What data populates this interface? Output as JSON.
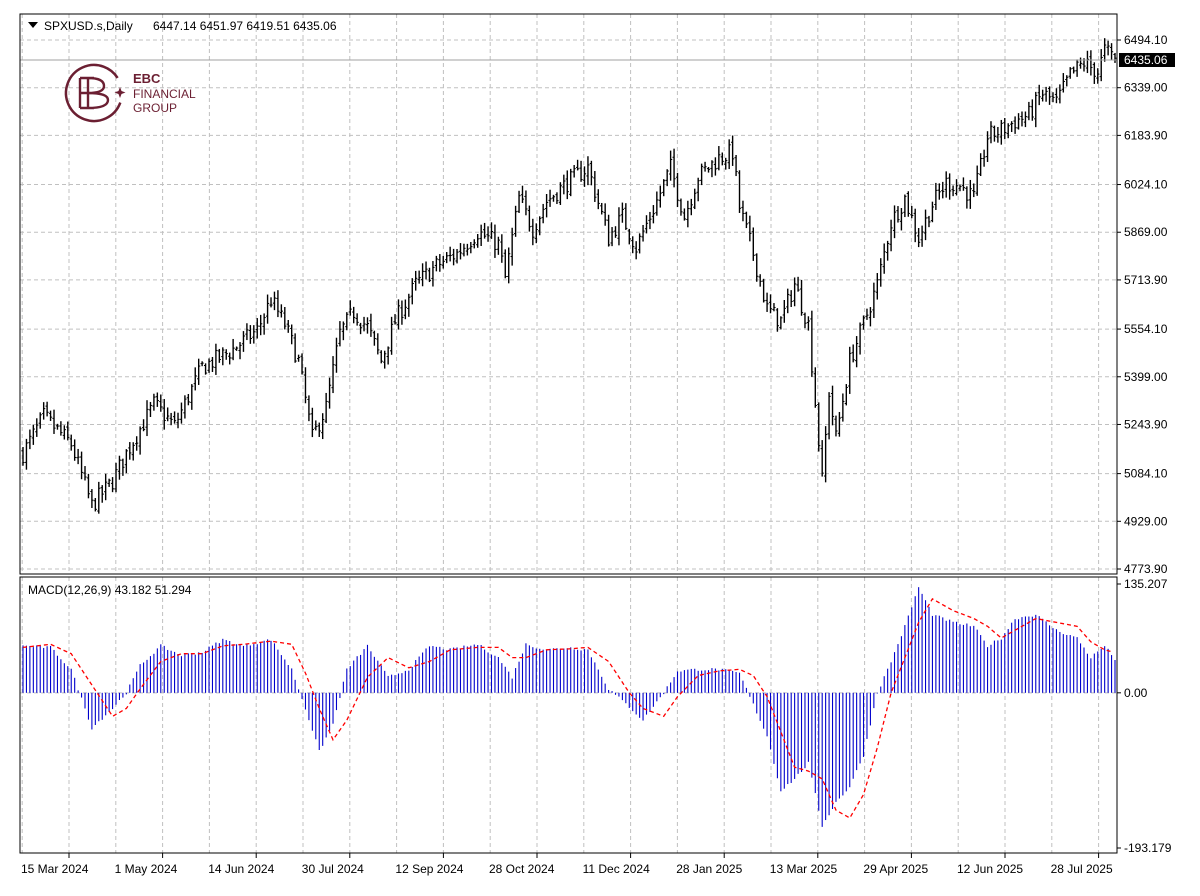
{
  "header": {
    "symbol": "SPXUSD.s,Daily",
    "ohlc": "6447.14 6451.97 6419.51 6435.06"
  },
  "logo": {
    "line1": "EBC",
    "line2": "FINANCIAL",
    "line3": "GROUP"
  },
  "price_axis": {
    "labels": [
      "6494.10",
      "6339.00",
      "6183.90",
      "6024.10",
      "5869.00",
      "5713.90",
      "5554.10",
      "5399.00",
      "5243.90",
      "5084.10",
      "4929.00",
      "4773.90"
    ],
    "current": "6435.06"
  },
  "macd": {
    "label": "MACD(12,26,9) 43.182 51.294",
    "axis_labels": [
      "135.207",
      "0.00",
      "-193.179"
    ]
  },
  "time_axis": {
    "labels": [
      "15 Mar 2024",
      "1 May 2024",
      "14 Jun 2024",
      "30 Jul 2024",
      "12 Sep 2024",
      "28 Oct 2024",
      "11 Dec 2024",
      "28 Jan 2025",
      "13 Mar 2025",
      "29 Apr 2025",
      "12 Jun 2025",
      "28 Jul 2025"
    ]
  },
  "colors": {
    "bars": "#000000",
    "grid": "#c0c0c0",
    "histogram": "#0000cc",
    "signal": "#ff0000",
    "current_price_bg": "#000000"
  },
  "chart_data": [
    {
      "type": "ohlc",
      "title": "SPXUSD.s,Daily",
      "last_bar": {
        "open": 6447.14,
        "high": 6451.97,
        "low": 6419.51,
        "close": 6435.06
      },
      "ylim": [
        4773.9,
        6494.1
      ],
      "x": [
        "15 Mar 2024",
        "1 May 2024",
        "14 Jun 2024",
        "30 Jul 2024",
        "12 Sep 2024",
        "28 Oct 2024",
        "11 Dec 2024",
        "28 Jan 2025",
        "13 Mar 2025",
        "29 Apr 2025",
        "12 Jun 2025",
        "28 Jul 2025"
      ],
      "close_trend": [
        [
          0,
          5150
        ],
        [
          6,
          5270
        ],
        [
          14,
          5180
        ],
        [
          20,
          4980
        ],
        [
          26,
          5060
        ],
        [
          30,
          5150
        ],
        [
          38,
          5310
        ],
        [
          44,
          5240
        ],
        [
          52,
          5430
        ],
        [
          60,
          5480
        ],
        [
          68,
          5550
        ],
        [
          72,
          5650
        ],
        [
          76,
          5570
        ],
        [
          80,
          5450
        ],
        [
          84,
          5200
        ],
        [
          88,
          5300
        ],
        [
          92,
          5540
        ],
        [
          96,
          5610
        ],
        [
          100,
          5560
        ],
        [
          104,
          5450
        ],
        [
          108,
          5580
        ],
        [
          114,
          5700
        ],
        [
          120,
          5760
        ],
        [
          126,
          5800
        ],
        [
          132,
          5870
        ],
        [
          138,
          5830
        ],
        [
          140,
          5720
        ],
        [
          144,
          5980
        ],
        [
          148,
          5880
        ],
        [
          152,
          5970
        ],
        [
          158,
          6030
        ],
        [
          164,
          6080
        ],
        [
          170,
          5850
        ],
        [
          174,
          5920
        ],
        [
          178,
          5820
        ],
        [
          184,
          5970
        ],
        [
          188,
          6080
        ],
        [
          192,
          5920
        ],
        [
          196,
          6050
        ],
        [
          202,
          6110
        ],
        [
          206,
          6130
        ],
        [
          208,
          5950
        ],
        [
          212,
          5800
        ],
        [
          216,
          5620
        ],
        [
          220,
          5580
        ],
        [
          224,
          5700
        ],
        [
          228,
          5570
        ],
        [
          232,
          5060
        ],
        [
          234,
          5350
        ],
        [
          236,
          5200
        ],
        [
          240,
          5450
        ],
        [
          244,
          5570
        ],
        [
          248,
          5700
        ],
        [
          252,
          5900
        ],
        [
          256,
          5980
        ],
        [
          260,
          5850
        ],
        [
          264,
          5960
        ],
        [
          268,
          6030
        ],
        [
          272,
          6020
        ],
        [
          276,
          5980
        ],
        [
          280,
          6180
        ],
        [
          284,
          6200
        ],
        [
          288,
          6230
        ],
        [
          292,
          6250
        ],
        [
          296,
          6320
        ],
        [
          300,
          6290
        ],
        [
          304,
          6380
        ],
        [
          308,
          6420
        ],
        [
          312,
          6390
        ],
        [
          314,
          6460
        ],
        [
          317,
          6435.06
        ]
      ]
    },
    {
      "type": "bar",
      "title": "MACD(12,26,9)",
      "macd_value": 43.182,
      "signal_value": 51.294,
      "ylim": [
        -193.179,
        135.207
      ],
      "series": [
        {
          "values": [
            [
              0,
              60
            ],
            [
              8,
              58
            ],
            [
              14,
              30
            ],
            [
              20,
              -45
            ],
            [
              26,
              -20
            ],
            [
              30,
              0
            ],
            [
              34,
              35
            ],
            [
              40,
              60
            ],
            [
              46,
              48
            ],
            [
              52,
              52
            ],
            [
              58,
              68
            ],
            [
              64,
              60
            ],
            [
              72,
              68
            ],
            [
              78,
              30
            ],
            [
              82,
              -20
            ],
            [
              86,
              -75
            ],
            [
              90,
              -40
            ],
            [
              94,
              30
            ],
            [
              100,
              60
            ],
            [
              106,
              20
            ],
            [
              112,
              30
            ],
            [
              118,
              60
            ],
            [
              124,
              55
            ],
            [
              132,
              62
            ],
            [
              138,
              45
            ],
            [
              142,
              20
            ],
            [
              146,
              62
            ],
            [
              152,
              55
            ],
            [
              158,
              58
            ],
            [
              164,
              55
            ],
            [
              170,
              5
            ],
            [
              176,
              -18
            ],
            [
              180,
              -35
            ],
            [
              186,
              0
            ],
            [
              190,
              28
            ],
            [
              196,
              30
            ],
            [
              202,
              30
            ],
            [
              208,
              25
            ],
            [
              212,
              -15
            ],
            [
              216,
              -55
            ],
            [
              220,
              -125
            ],
            [
              224,
              -110
            ],
            [
              228,
              -90
            ],
            [
              232,
              -170
            ],
            [
              236,
              -140
            ],
            [
              240,
              -120
            ],
            [
              244,
              -80
            ],
            [
              248,
              0
            ],
            [
              252,
              40
            ],
            [
              256,
              85
            ],
            [
              260,
              135
            ],
            [
              264,
              100
            ],
            [
              270,
              90
            ],
            [
              276,
              85
            ],
            [
              280,
              60
            ],
            [
              284,
              70
            ],
            [
              288,
              95
            ],
            [
              294,
              100
            ],
            [
              300,
              80
            ],
            [
              306,
              70
            ],
            [
              310,
              45
            ],
            [
              314,
              60
            ],
            [
              317,
              43.182
            ]
          ]
        },
        {
          "values": [
            [
              0,
              58
            ],
            [
              8,
              62
            ],
            [
              14,
              50
            ],
            [
              20,
              10
            ],
            [
              26,
              -30
            ],
            [
              30,
              -20
            ],
            [
              34,
              5
            ],
            [
              40,
              40
            ],
            [
              46,
              50
            ],
            [
              52,
              50
            ],
            [
              58,
              60
            ],
            [
              64,
              62
            ],
            [
              72,
              66
            ],
            [
              78,
              62
            ],
            [
              82,
              25
            ],
            [
              86,
              -20
            ],
            [
              90,
              -60
            ],
            [
              94,
              -35
            ],
            [
              100,
              20
            ],
            [
              106,
              45
            ],
            [
              112,
              32
            ],
            [
              118,
              40
            ],
            [
              124,
              55
            ],
            [
              132,
              58
            ],
            [
              138,
              58
            ],
            [
              142,
              45
            ],
            [
              146,
              45
            ],
            [
              152,
              55
            ],
            [
              158,
              56
            ],
            [
              164,
              58
            ],
            [
              170,
              40
            ],
            [
              176,
              0
            ],
            [
              180,
              -20
            ],
            [
              186,
              -30
            ],
            [
              190,
              -5
            ],
            [
              196,
              22
            ],
            [
              202,
              28
            ],
            [
              208,
              30
            ],
            [
              212,
              22
            ],
            [
              216,
              -5
            ],
            [
              220,
              -50
            ],
            [
              224,
              -95
            ],
            [
              228,
              -100
            ],
            [
              232,
              -110
            ],
            [
              236,
              -150
            ],
            [
              240,
              -160
            ],
            [
              244,
              -130
            ],
            [
              248,
              -70
            ],
            [
              252,
              0
            ],
            [
              256,
              45
            ],
            [
              260,
              90
            ],
            [
              264,
              120
            ],
            [
              270,
              105
            ],
            [
              276,
              95
            ],
            [
              280,
              85
            ],
            [
              284,
              70
            ],
            [
              288,
              80
            ],
            [
              294,
              95
            ],
            [
              300,
              90
            ],
            [
              306,
              85
            ],
            [
              310,
              65
            ],
            [
              314,
              55
            ],
            [
              317,
              51.294
            ]
          ]
        }
      ]
    }
  ]
}
